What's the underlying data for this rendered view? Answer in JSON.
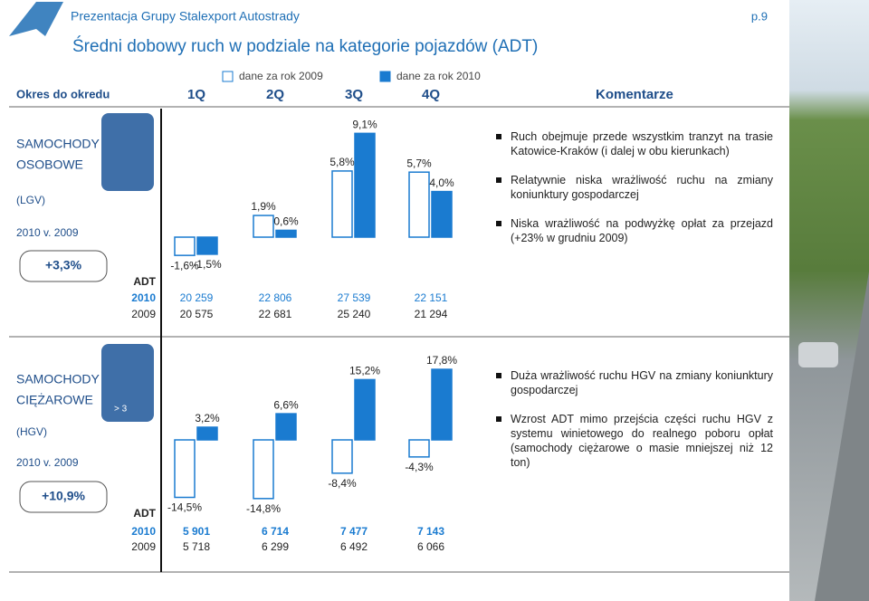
{
  "header": {
    "brand": "Prezentacja Grupy Stalexport Autostrady",
    "page": "p.9",
    "title": "Średni dobowy ruch w podziale na kategorie pojazdów (ADT)"
  },
  "columns": {
    "period": "Okres do okredu",
    "comments": "Komentarze"
  },
  "chart_data": [
    {
      "type": "bar",
      "categories": [
        "1Q",
        "2Q",
        "3Q",
        "4Q"
      ],
      "series": [
        {
          "name": "dane za rok 2009",
          "color": "#ffffff",
          "values": [
            -1.6,
            1.9,
            5.8,
            5.7
          ],
          "value_labels": [
            "-1,6%",
            "1,9%",
            "5,8%",
            "5,7%"
          ]
        },
        {
          "name": "dane za rok 2010",
          "color": "#1a7bd0",
          "values": [
            -1.5,
            0.6,
            9.1,
            4.0
          ],
          "value_labels": [
            "-1,5%",
            "0,6%",
            "9,1%",
            "4,0%"
          ]
        }
      ]
    },
    {
      "type": "bar",
      "series": [
        {
          "color": "#ffffff",
          "values": [
            -14.5,
            -14.8,
            -8.4,
            -4.3
          ],
          "value_labels": [
            "-14,5%",
            "-14,8%",
            "-8,4%",
            "-4,3%"
          ]
        },
        {
          "color": "#1a7bd0",
          "values": [
            3.2,
            6.6,
            15.2,
            17.8
          ],
          "value_labels": [
            "3,2%",
            "6,6%",
            "15,2%",
            "17,8%"
          ]
        }
      ]
    }
  ],
  "sections": [
    {
      "category": [
        "SAMOCHODY",
        "OSOBOWE"
      ],
      "code": "(LGV)",
      "period": "2010 v. 2009",
      "change": "+3,3%",
      "adt": {
        "label": "ADT",
        "rows": [
          {
            "year": "2010",
            "values": [
              "20 259",
              "22 806",
              "27 539",
              "22 151"
            ]
          },
          {
            "year": "2009",
            "values": [
              "20 575",
              "22 681",
              "25 240",
              "21 294"
            ]
          }
        ]
      },
      "comments": [
        "Ruch obejmuje przede wszystkim tranzyt na trasie Katowice-Kraków (i dalej w obu kierunkach)",
        "Relatywnie niska wrażliwość ruchu na zmiany koniunktury gospodarczej",
        "Niska wrażliwość na podwyżkę opłat za przejazd (+23% w grudniu 2009)"
      ]
    },
    {
      "category": [
        "SAMOCHODY",
        "CIĘŻAROWE"
      ],
      "code": "(HGV)",
      "period": "2010 v. 2009",
      "change": "+10,9%",
      "icon_label": "> 3",
      "adt": {
        "label": "ADT",
        "rows": [
          {
            "year": "2010",
            "values": [
              "5 901",
              "6 714",
              "7 477",
              "7 143"
            ]
          },
          {
            "year": "2009",
            "values": [
              "5 718",
              "6 299",
              "6 492",
              "6 066"
            ]
          }
        ]
      },
      "comments": [
        "Duża wrażliwość ruchu HGV na zmiany koniunktury gospodarczej",
        "Wzrost ADT mimo przejścia części ruchu HGV z systemu winietowego do realnego poboru opłat (samochody ciężarowe o masie mniejszej niż 12 ton)"
      ]
    }
  ]
}
